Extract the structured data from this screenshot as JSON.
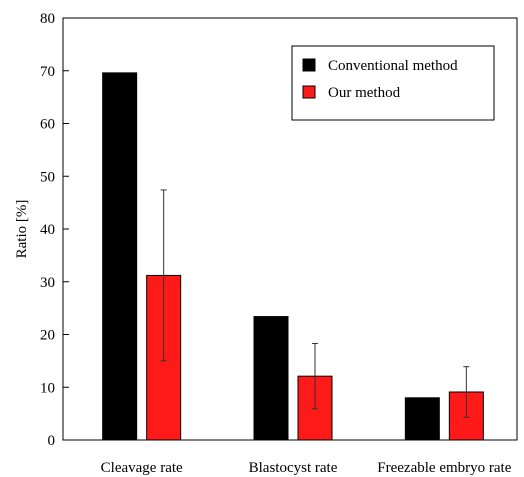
{
  "chart_data": {
    "type": "bar",
    "categories": [
      "Cleavage rate",
      "Blastocyst rate",
      "Freezable embryo rate"
    ],
    "series": [
      {
        "name": "Conventional method",
        "color": "#000000",
        "values": [
          69.6,
          23.4,
          8.0
        ],
        "errors": [
          null,
          null,
          null
        ]
      },
      {
        "name": "Our method",
        "color": "#ff1a1a",
        "values": [
          31.2,
          12.1,
          9.1
        ],
        "errors": [
          16.2,
          6.2,
          4.8
        ]
      }
    ],
    "ylabel": "Ratio [%]",
    "xlabel": "",
    "ylim": [
      0,
      80
    ],
    "yticks": [
      0,
      10,
      20,
      30,
      40,
      50,
      60,
      70,
      80
    ],
    "grid": false,
    "legend_position": "top-right"
  }
}
